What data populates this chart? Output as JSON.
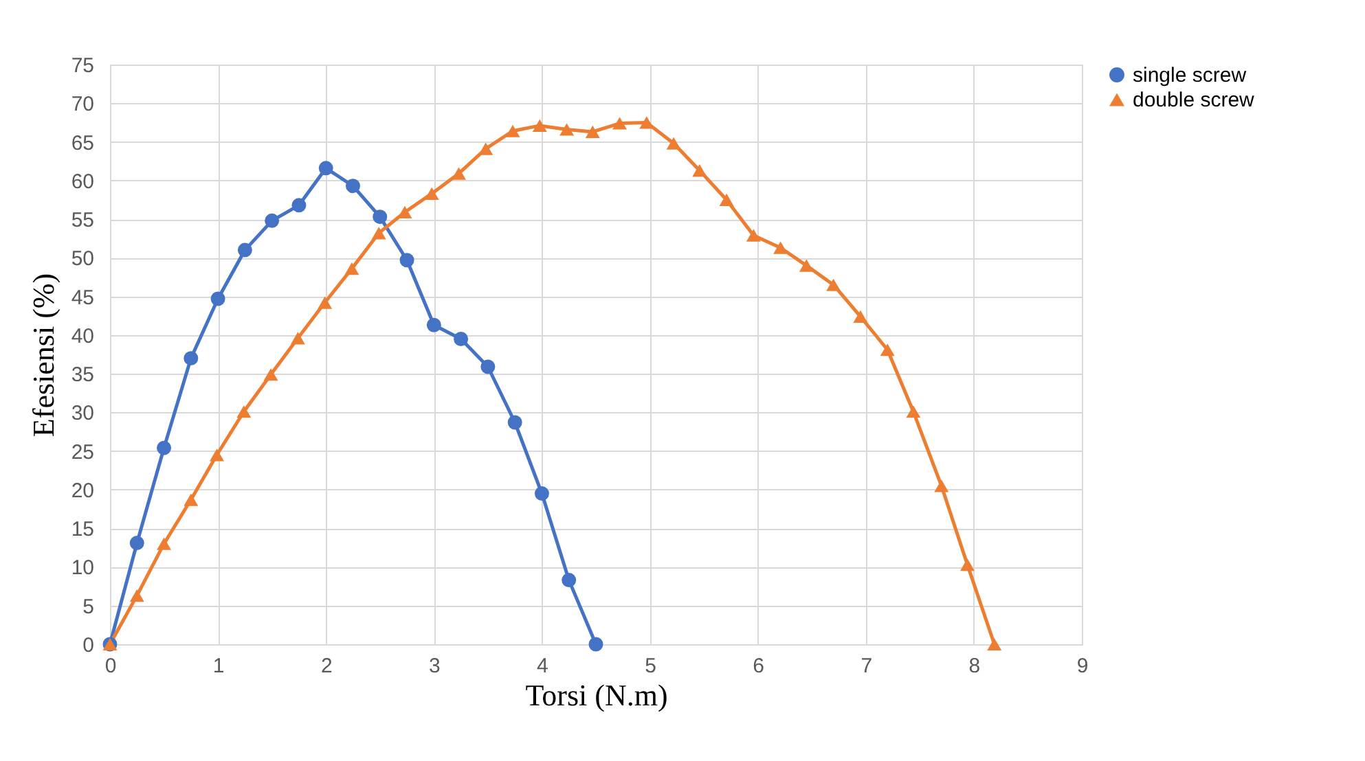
{
  "chart_data": {
    "type": "line",
    "xlabel": "Torsi (N.m)",
    "ylabel": "Efesiensi (%)",
    "xlim": [
      0,
      9
    ],
    "xticks": [
      0,
      1,
      2,
      3,
      4,
      5,
      6,
      7,
      8,
      9
    ],
    "ylim": [
      0,
      75
    ],
    "yticks": [
      0,
      5,
      10,
      15,
      20,
      25,
      30,
      35,
      40,
      45,
      50,
      55,
      60,
      65,
      70,
      75
    ],
    "grid": true,
    "legend": "right",
    "line_style": "solid",
    "series": [
      {
        "name": "single screw",
        "color": "#4472c4",
        "marker": "circle",
        "x": [
          0,
          0.25,
          0.5,
          0.75,
          1,
          1.25,
          1.5,
          1.75,
          2,
          2.25,
          2.5,
          2.75,
          3,
          3.25,
          3.5,
          3.75,
          4,
          4.25,
          4.5
        ],
        "values": [
          0,
          13.1,
          25.4,
          37,
          44.7,
          51,
          54.8,
          56.8,
          61.6,
          59.3,
          55.3,
          49.7,
          41.3,
          39.5,
          35.9,
          28.7,
          19.5,
          8.3,
          0
        ]
      },
      {
        "name": "double screw",
        "color": "#ed7d31",
        "marker": "triangle",
        "x": [
          0,
          0.25,
          0.5,
          0.75,
          0.99,
          1.24,
          1.49,
          1.74,
          1.99,
          2.24,
          2.49,
          2.73,
          2.98,
          3.23,
          3.48,
          3.73,
          3.98,
          4.23,
          4.47,
          4.72,
          4.97,
          5.22,
          5.46,
          5.71,
          5.96,
          6.21,
          6.45,
          6.7,
          6.95,
          7.2,
          7.44,
          7.7,
          7.94,
          8.19
        ],
        "values": [
          0,
          6.3,
          13,
          18.7,
          24.5,
          30.1,
          34.9,
          39.6,
          44.2,
          48.6,
          53.2,
          55.9,
          58.3,
          60.9,
          64.1,
          66.4,
          67.1,
          66.6,
          66.3,
          67.4,
          67.5,
          64.8,
          61.3,
          57.5,
          52.9,
          51.3,
          49,
          46.5,
          42.4,
          38.1,
          30.1,
          20.5,
          10.3,
          0
        ]
      }
    ]
  }
}
